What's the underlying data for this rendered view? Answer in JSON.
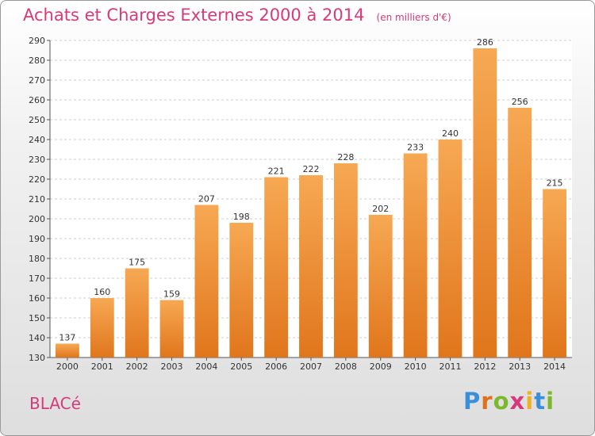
{
  "title": "Achats et Charges Externes 2000 à 2014",
  "unit": "(en milliers d'€)",
  "commune": "BLACé",
  "logo": {
    "letters": [
      "P",
      "r",
      "o",
      "x",
      "i",
      "t",
      "i"
    ],
    "colors": [
      "#3a8fd8",
      "#e07020",
      "#7ab82e",
      "#d63a7a",
      "#f0b020",
      "#3a8fd8",
      "#7ab82e"
    ]
  },
  "colors": {
    "bar_top": "#f7a853",
    "bar_bottom": "#e0761c",
    "title": "#d63a7a"
  },
  "chart_data": {
    "type": "bar",
    "title": "Achats et Charges Externes 2000 à 2014",
    "subtitle": "(en milliers d'€)",
    "xlabel": "",
    "ylabel": "",
    "categories": [
      "2000",
      "2001",
      "2002",
      "2003",
      "2004",
      "2005",
      "2006",
      "2007",
      "2008",
      "2009",
      "2010",
      "2011",
      "2012",
      "2013",
      "2014"
    ],
    "values": [
      137,
      160,
      175,
      159,
      207,
      198,
      221,
      222,
      228,
      202,
      233,
      240,
      286,
      256,
      215
    ],
    "ylim": [
      130,
      290
    ],
    "yticks": [
      130,
      140,
      150,
      160,
      170,
      180,
      190,
      200,
      210,
      220,
      230,
      240,
      250,
      260,
      270,
      280,
      290
    ],
    "grid": true,
    "legend": "none"
  }
}
